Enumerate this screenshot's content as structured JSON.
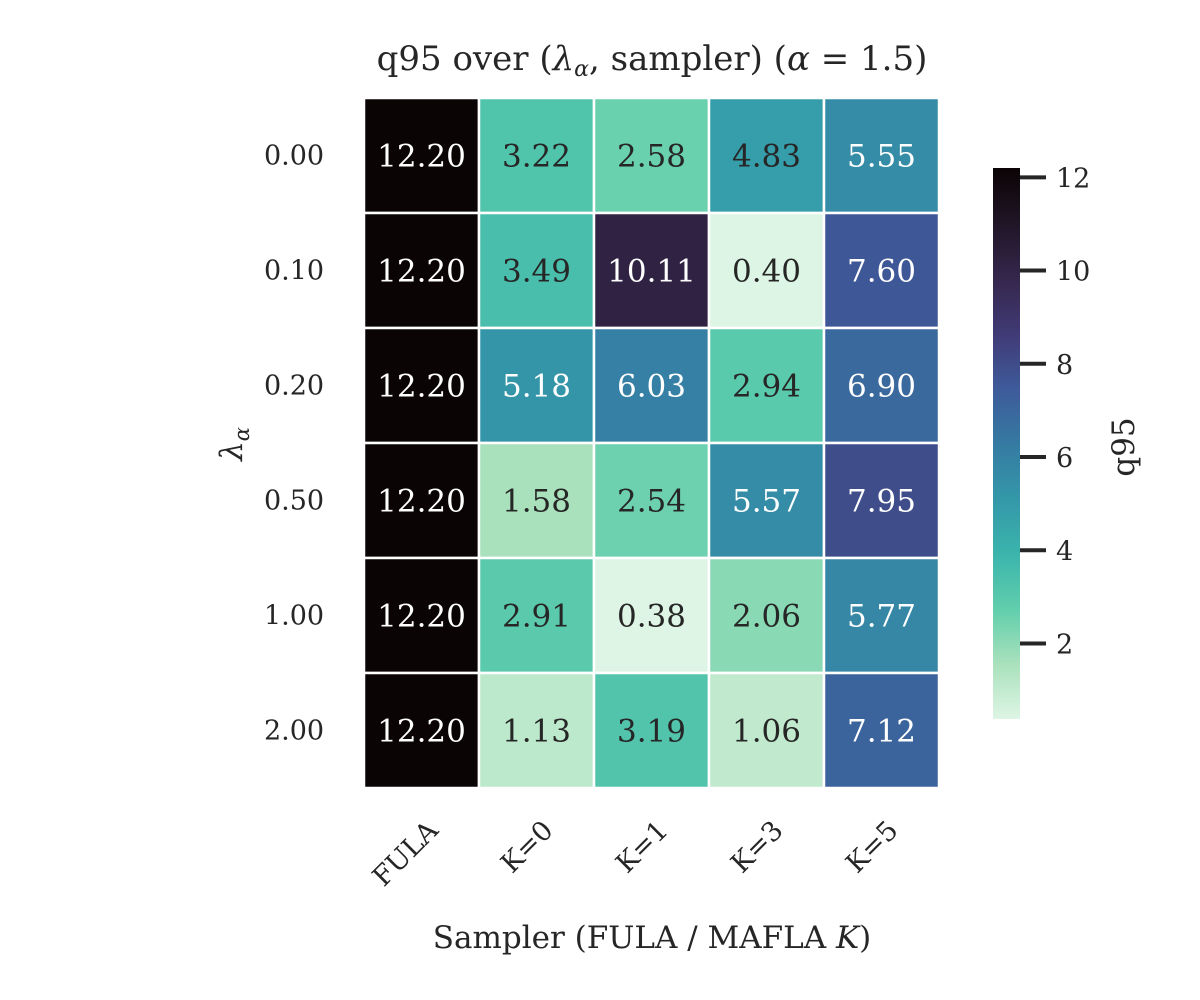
{
  "chart_data": {
    "type": "heatmap",
    "title": "q95 over (λα, sampler) (α = 1.5)",
    "title_parts": {
      "prefix": "q95 over (",
      "lambda_symbol": "λ",
      "lambda_subscript": "α",
      "middle": ", sampler) (",
      "alpha_symbol": "α",
      "alpha_value": " = 1.5)"
    },
    "xlabel": "Sampler (FULA / MAFLA K)",
    "xlabel_parts": {
      "prefix": "Sampler (FULA / MAFLA ",
      "italic": "K",
      "suffix": ")"
    },
    "ylabel": "λα",
    "ylabel_parts": {
      "symbol": "λ",
      "subscript": "α"
    },
    "x_categories": [
      "FULA",
      "K=0",
      "K=1",
      "K=3",
      "K=5"
    ],
    "y_categories": [
      "0.00",
      "0.10",
      "0.20",
      "0.50",
      "1.00",
      "2.00"
    ],
    "values": [
      [
        12.2,
        3.22,
        2.58,
        4.83,
        5.55
      ],
      [
        12.2,
        3.49,
        10.11,
        0.4,
        7.6
      ],
      [
        12.2,
        5.18,
        6.03,
        2.94,
        6.9
      ],
      [
        12.2,
        1.58,
        2.54,
        5.57,
        7.95
      ],
      [
        12.2,
        2.91,
        0.38,
        2.06,
        5.77
      ],
      [
        12.2,
        1.13,
        3.19,
        1.06,
        7.12
      ]
    ],
    "value_format_decimals": 2,
    "colormap": "mako_r",
    "colorbar": {
      "label": "q95",
      "vmin": 0.38,
      "vmax": 12.2,
      "ticks": [
        2,
        4,
        6,
        8,
        10,
        12
      ]
    },
    "colors": {
      "cell_border": "#ffffff",
      "text_dark": "#262626",
      "text_light": "#ffffff",
      "colormap_stops": [
        "#def5e5",
        "#a9e1bc",
        "#60ceac",
        "#3bb4ac",
        "#3497a9",
        "#357aa2",
        "#3e5a9a",
        "#403a75",
        "#35264c",
        "#201526",
        "#0b0405"
      ]
    }
  }
}
